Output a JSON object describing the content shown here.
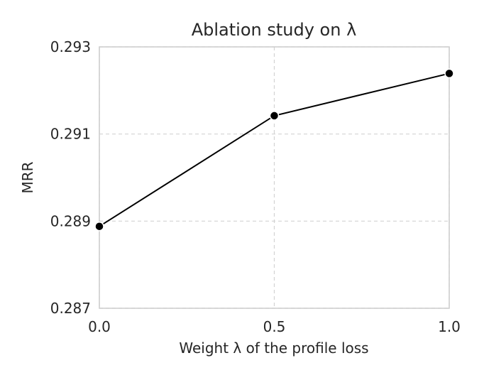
{
  "chart_data": {
    "type": "line",
    "title": "Ablation study on λ",
    "xlabel": "Weight λ of the profile loss",
    "ylabel": "MRR",
    "x": [
      0.0,
      0.5,
      1.0
    ],
    "series": [
      {
        "values": [
          0.28888,
          0.29142,
          0.29239
        ],
        "color": "#000000",
        "marker": "circle"
      }
    ],
    "xlim": [
      0.0,
      1.0
    ],
    "ylim": [
      0.287,
      0.293
    ],
    "xticks": [
      "0.0",
      "0.5",
      "1.0"
    ],
    "yticks": [
      "0.287",
      "0.289",
      "0.291",
      "0.293"
    ],
    "grid": true,
    "grid_style": "dashed",
    "grid_color": "#d3d3d3",
    "axes_color": "#cccccc",
    "text_color": "#262626"
  }
}
